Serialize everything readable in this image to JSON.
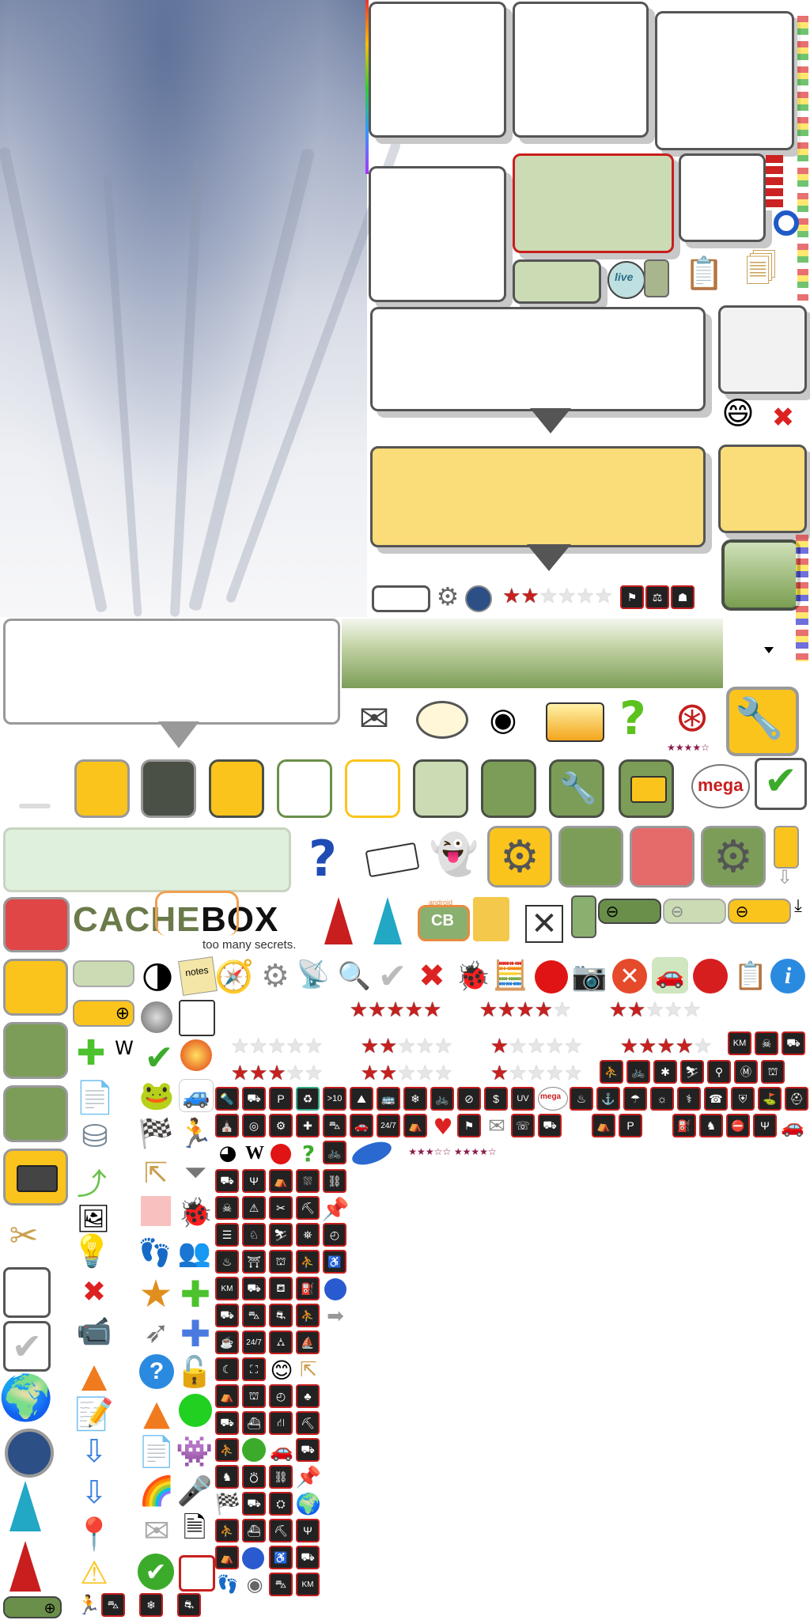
{
  "logo": {
    "brand_left": "CACHE",
    "brand_right": "BOX",
    "tagline": "too many secrets."
  },
  "labels": {
    "notes": "notes",
    "mega": "mega",
    "km": "KM",
    "ten_km": ">10",
    "uv": "UV",
    "open_24_7": "24/7",
    "dollar": "$",
    "live": "live",
    "android": "android",
    "cb": "CB"
  },
  "colors": {
    "accent_green": "#6a8f4a",
    "accent_yellow": "#fbc41c",
    "accent_red": "#c81e1e",
    "dark_tile": "#4a5045",
    "light_green": "#cbdcb4",
    "bubble_yellow": "#fadc78"
  },
  "icons": [
    "scissors-icon",
    "gear-icon",
    "compass-icon",
    "help-icon",
    "close-icon",
    "checkmark-icon",
    "envelope-icon",
    "webcam-icon",
    "camera-icon",
    "car-icon",
    "star-icon",
    "globe-icon",
    "arrow-icon",
    "bulb-icon",
    "cone-icon",
    "lock-icon",
    "ghost-icon"
  ]
}
